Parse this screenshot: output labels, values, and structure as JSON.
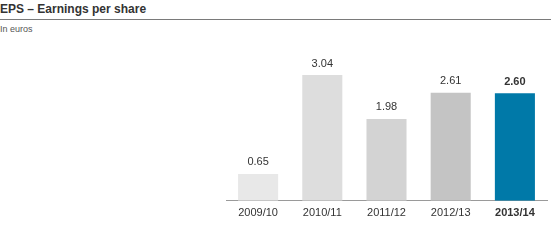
{
  "chart_data": {
    "type": "bar",
    "title": "EPS – Earnings per share",
    "subtitle": "In euros",
    "categories": [
      "2009/10",
      "2010/11",
      "2011/12",
      "2012/13",
      "2013/14"
    ],
    "values": [
      0.65,
      3.04,
      1.98,
      2.61,
      2.6
    ],
    "value_labels": [
      "0.65",
      "3.04",
      "1.98",
      "2.61",
      "2.60"
    ],
    "colors": [
      "#e8e8e8",
      "#dddddd",
      "#d3d3d3",
      "#c4c4c4",
      "#0079a8"
    ],
    "data_labels": true,
    "tick_labels": "x",
    "grid": false
  }
}
